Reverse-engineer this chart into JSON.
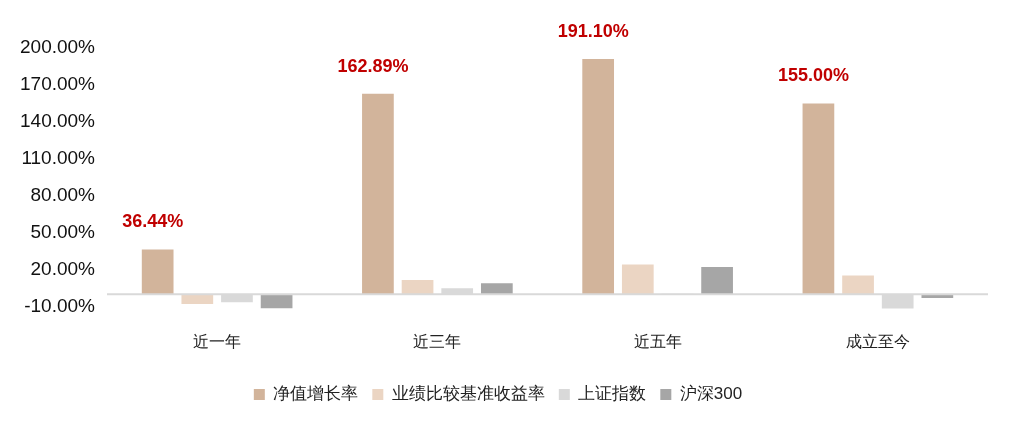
{
  "chart_data": {
    "type": "bar",
    "categories": [
      "近一年",
      "近三年",
      "近五年",
      "成立至今"
    ],
    "series": [
      {
        "name": "净值增长率",
        "color": "#d2b49b",
        "values": [
          36.44,
          162.89,
          191.1,
          155.0
        ],
        "value_labels": [
          "36.44%",
          "162.89%",
          "191.10%",
          "155.00%"
        ]
      },
      {
        "name": "业绩比较基准收益率",
        "color": "#ebd5c3",
        "values": [
          -7.8,
          11.7,
          24.3,
          15.2
        ]
      },
      {
        "name": "上证指数",
        "color": "#d9d9d9",
        "values": [
          -6.4,
          4.9,
          0.5,
          -11.5
        ]
      },
      {
        "name": "沪深300",
        "color": "#a6a6a6",
        "values": [
          -11.3,
          9.0,
          22.2,
          -2.9
        ]
      }
    ],
    "ylim": [
      -15,
      200
    ],
    "yticks": [
      {
        "value": -10,
        "label": "-10.00%"
      },
      {
        "value": 20,
        "label": "20.00%"
      },
      {
        "value": 50,
        "label": "50.00%"
      },
      {
        "value": 80,
        "label": "80.00%"
      },
      {
        "value": 110,
        "label": "110.00%"
      },
      {
        "value": 140,
        "label": "140.00%"
      },
      {
        "value": 170,
        "label": "170.00%"
      },
      {
        "value": 200,
        "label": "200.00%"
      }
    ],
    "grid": false,
    "legend": "bottom"
  }
}
